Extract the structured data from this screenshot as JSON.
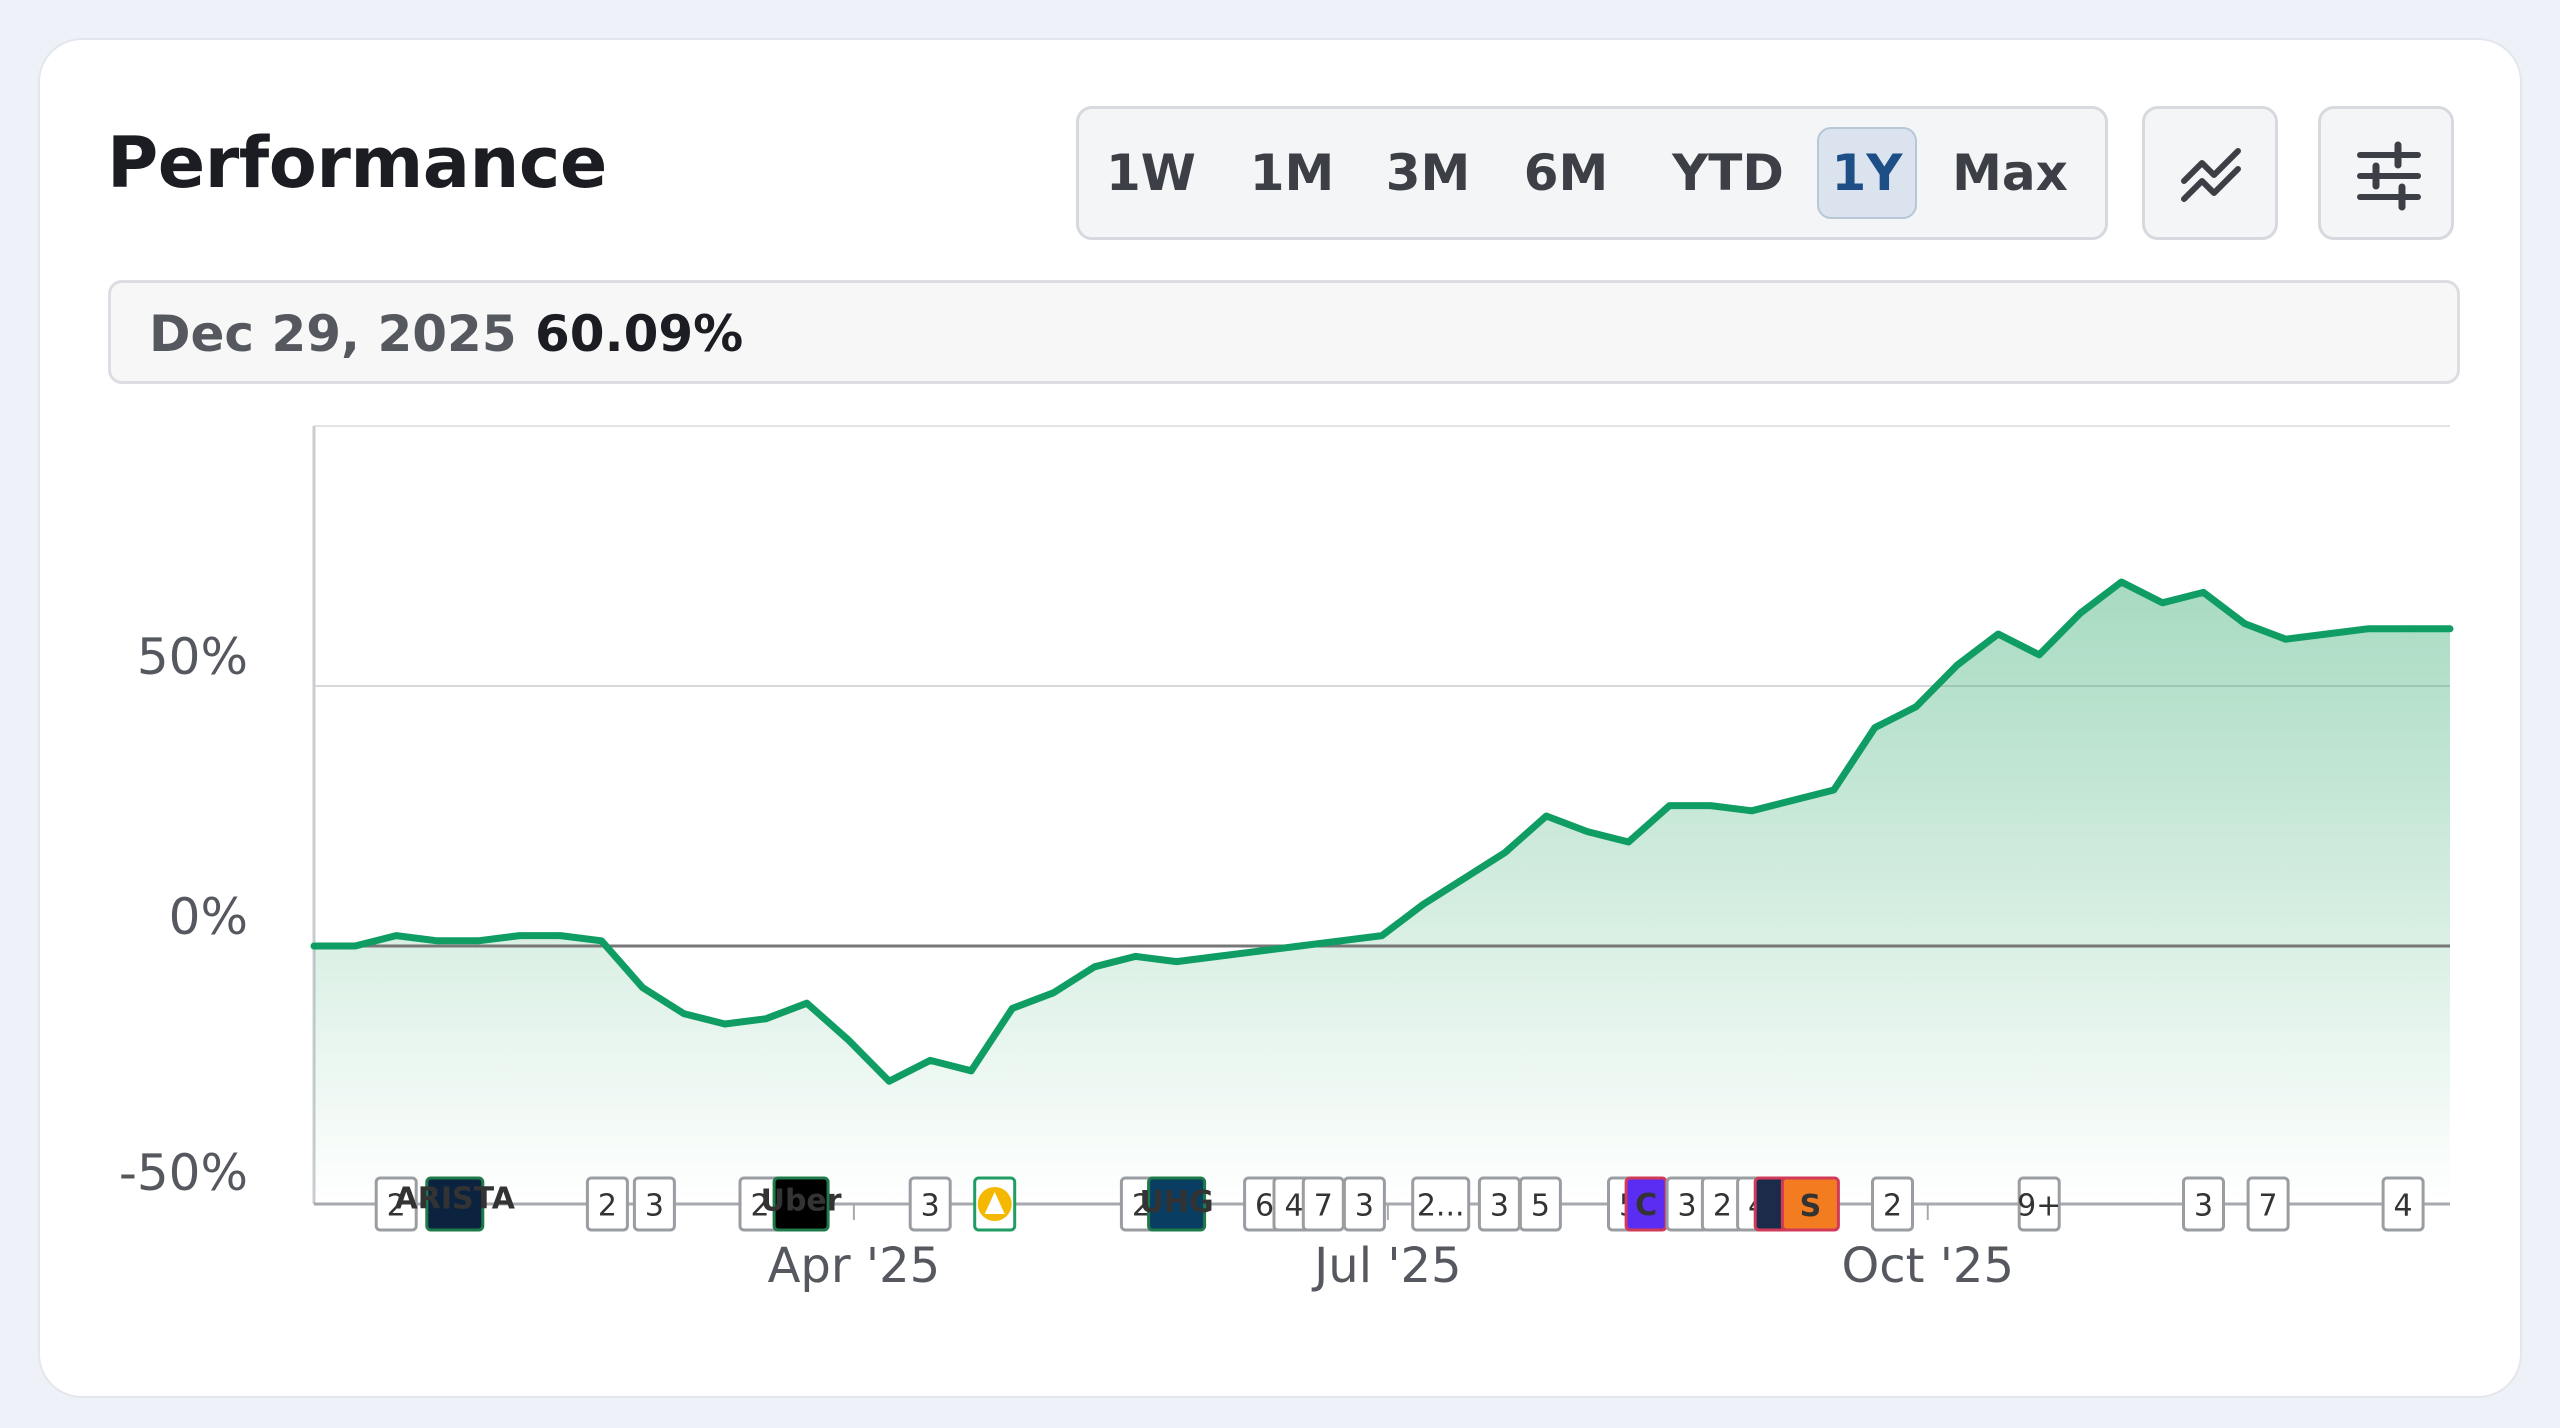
{
  "header": {
    "title": "Performance"
  },
  "ranges": [
    {
      "label": "1W",
      "active": false
    },
    {
      "label": "1M",
      "active": false
    },
    {
      "label": "3M",
      "active": false
    },
    {
      "label": "6M",
      "active": false
    },
    {
      "label": "YTD",
      "active": false
    },
    {
      "label": "1Y",
      "active": true
    },
    {
      "label": "Max",
      "active": false
    }
  ],
  "icons": {
    "chart_type": "trend-lines-icon",
    "settings": "sliders-icon"
  },
  "tooltip": {
    "date": "Dec 29, 2025",
    "value": "60.09%"
  },
  "colors": {
    "line": "#0f9d63",
    "fill": "#2ea86a",
    "baseline": "#777777",
    "active_range": "#1d4f86"
  },
  "chart_data": {
    "type": "area",
    "title": "",
    "xlabel": "",
    "ylabel": "",
    "ylim": [
      -50,
      100
    ],
    "y_ticks": [
      {
        "value": 50,
        "label": "50%"
      },
      {
        "value": 0,
        "label": "0%"
      },
      {
        "value": -50,
        "label": "-50%"
      }
    ],
    "x_ticks": [
      "Apr '25",
      "Jul '25",
      "Oct '25"
    ],
    "grid": "horizontal at 50%",
    "baseline": 0,
    "series": [
      {
        "x": [
          "2024-12-30",
          "2025-01-06",
          "2025-01-13",
          "2025-01-20",
          "2025-01-27",
          "2025-02-03",
          "2025-02-10",
          "2025-02-17",
          "2025-02-24",
          "2025-03-03",
          "2025-03-10",
          "2025-03-17",
          "2025-03-24",
          "2025-03-31",
          "2025-04-07",
          "2025-04-14",
          "2025-04-21",
          "2025-04-28",
          "2025-05-05",
          "2025-05-12",
          "2025-05-19",
          "2025-05-26",
          "2025-06-02",
          "2025-06-09",
          "2025-06-16",
          "2025-06-23",
          "2025-06-30",
          "2025-07-07",
          "2025-07-14",
          "2025-07-21",
          "2025-07-28",
          "2025-08-04",
          "2025-08-11",
          "2025-08-18",
          "2025-08-25",
          "2025-09-01",
          "2025-09-08",
          "2025-09-15",
          "2025-09-22",
          "2025-09-29",
          "2025-10-06",
          "2025-10-13",
          "2025-10-20",
          "2025-10-27",
          "2025-11-03",
          "2025-11-10",
          "2025-11-17",
          "2025-11-24",
          "2025-12-01",
          "2025-12-08",
          "2025-12-15",
          "2025-12-22",
          "2025-12-29"
        ],
        "values": [
          0,
          0,
          2,
          1,
          1,
          2,
          2,
          1,
          -8,
          -13,
          -15,
          -14,
          -11,
          -18,
          -26,
          -22,
          -24,
          -12,
          -9,
          -4,
          -2,
          -3,
          -2,
          -1,
          0,
          1,
          2,
          8,
          13,
          18,
          25,
          22,
          20,
          27,
          27,
          26,
          28,
          30,
          42,
          46,
          54,
          60,
          56,
          64,
          70,
          66,
          68,
          62,
          59,
          60,
          61,
          61,
          61
        ]
      }
    ],
    "annotations": [
      {
        "date": "2025-01-13",
        "label": "2"
      },
      {
        "date": "2025-01-23",
        "label": "ARISTA"
      },
      {
        "date": "2025-02-18",
        "label": "2"
      },
      {
        "date": "2025-02-26",
        "label": "3"
      },
      {
        "date": "2025-03-16",
        "label": "2"
      },
      {
        "date": "2025-03-23",
        "label": "Uber"
      },
      {
        "date": "2025-04-14",
        "label": "3"
      },
      {
        "date": "2025-04-25",
        "label": ""
      },
      {
        "date": "2025-05-20",
        "label": "2"
      },
      {
        "date": "2025-05-26",
        "label": "UHG"
      },
      {
        "date": "2025-06-10",
        "label": "6"
      },
      {
        "date": "2025-06-15",
        "label": "4"
      },
      {
        "date": "2025-06-20",
        "label": "7"
      },
      {
        "date": "2025-06-27",
        "label": "3"
      },
      {
        "date": "2025-07-10",
        "label": "2..."
      },
      {
        "date": "2025-07-20",
        "label": "3"
      },
      {
        "date": "2025-07-27",
        "label": "5"
      },
      {
        "date": "2025-08-11",
        "label": "5"
      },
      {
        "date": "2025-08-14",
        "label": "C"
      },
      {
        "date": "2025-08-21",
        "label": "3"
      },
      {
        "date": "2025-08-27",
        "label": "2"
      },
      {
        "date": "2025-09-02",
        "label": "4"
      },
      {
        "date": "2025-09-05",
        "label": ""
      },
      {
        "date": "2025-09-11",
        "label": "S"
      },
      {
        "date": "2025-09-25",
        "label": "2"
      },
      {
        "date": "2025-10-20",
        "label": "9+"
      },
      {
        "date": "2025-11-17",
        "label": "3"
      },
      {
        "date": "2025-11-28",
        "label": "7"
      },
      {
        "date": "2025-12-21",
        "label": "4"
      }
    ]
  }
}
